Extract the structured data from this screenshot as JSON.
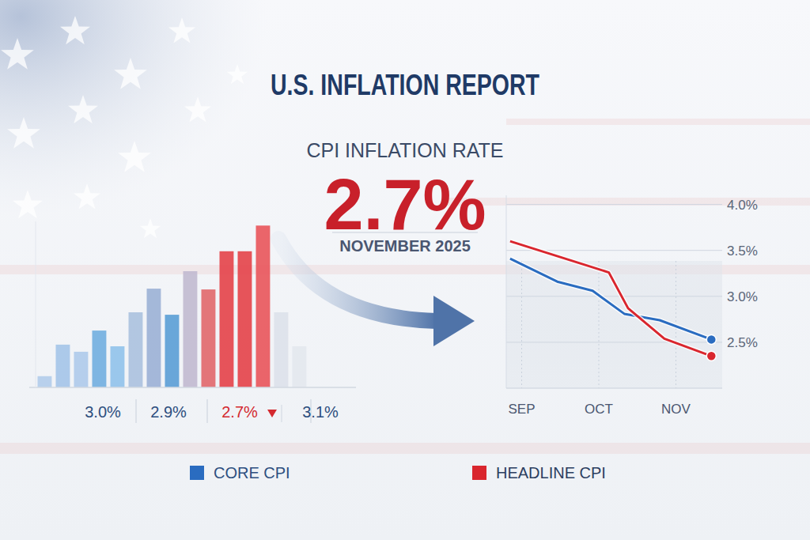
{
  "header": {
    "title": "U.S. INFLATION REPORT",
    "subtitle": "CPI INFLATION RATE",
    "value": "2.7%",
    "date": "NOVEMBER 2025"
  },
  "chart_data": [
    {
      "type": "bar",
      "categories": [
        null,
        null,
        null,
        null,
        null,
        null,
        null,
        null,
        null,
        null,
        null,
        null,
        null,
        null,
        null
      ],
      "values": [
        0.27,
        1.03,
        0.86,
        1.37,
        0.99,
        1.81,
        2.38,
        1.75,
        2.8,
        2.36,
        3.28,
        3.28,
        3.9,
        1.81,
        0.99
      ],
      "colors": [
        "#b3cdea",
        "#a6c6e8",
        "#b0cbea",
        "#74b0e0",
        "#93c3ea",
        "#adc2de",
        "#9db2d6",
        "#5d9fd6",
        "#c2bbd0",
        "#e26a6e",
        "#e5454c",
        "#e5454c",
        "#e9585d",
        "#dde2ea",
        "#e4e8ee"
      ],
      "ylim": [
        0,
        4
      ],
      "tick_labels": false,
      "grid": false,
      "annotations": [
        {
          "text": "3.0%",
          "color": "#2c4e7e"
        },
        {
          "text": "2.9%",
          "color": "#2c4e7e"
        },
        {
          "text": "2.7%",
          "color": "#d42a30"
        },
        {
          "text": "3.1%",
          "color": "#2c4e7e"
        }
      ]
    },
    {
      "type": "line",
      "series": [
        {
          "name": "CORE CPI",
          "color": "#2a6cc0",
          "marker": "end",
          "x": [
            -0.15,
            0.46,
            0.92,
            1.33,
            1.79,
            2.46
          ],
          "values": [
            3.41,
            3.16,
            3.06,
            2.81,
            2.74,
            2.53
          ]
        },
        {
          "name": "HEADLINE CPI",
          "color": "#d9262e",
          "marker": "end",
          "x": [
            -0.15,
            1.13,
            1.38,
            1.85,
            2.46
          ],
          "values": [
            3.6,
            3.26,
            2.87,
            2.54,
            2.35
          ]
        }
      ],
      "xlim": [
        -0.2,
        2.6
      ],
      "xticks": [
        {
          "value": 0,
          "label": "SEP"
        },
        {
          "value": 1,
          "label": "OCT"
        },
        {
          "value": 2,
          "label": "NOV"
        }
      ],
      "ylim": [
        2.0,
        4.1
      ],
      "yticks": [
        {
          "value": 2.5,
          "label": "2.5%"
        },
        {
          "value": 3.0,
          "label": "3.0%"
        },
        {
          "value": 3.5,
          "label": "3.5%"
        },
        {
          "value": 4.0,
          "label": "4.0%"
        }
      ],
      "grid": true,
      "legend": "bottom"
    }
  ]
}
